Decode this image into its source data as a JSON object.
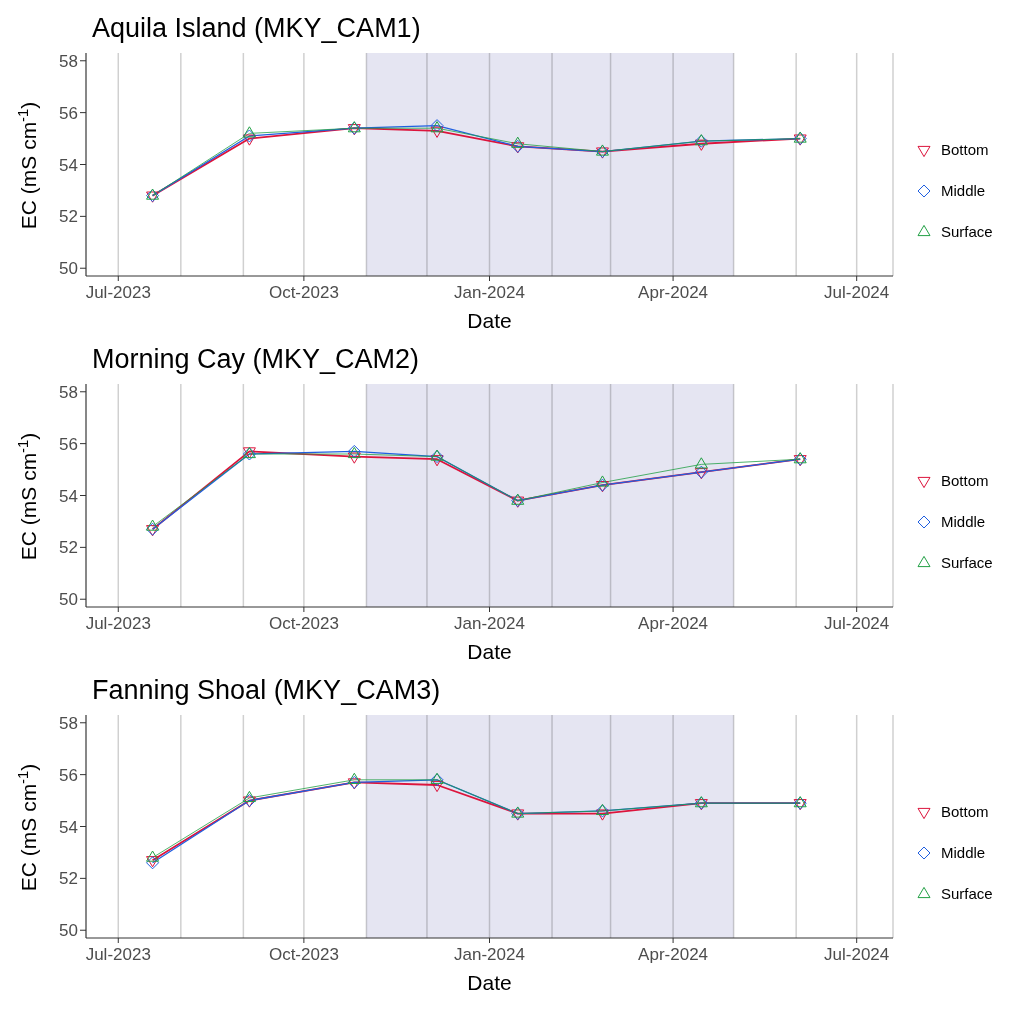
{
  "chart_data": [
    {
      "type": "line",
      "title": "Aquila Island (MKY_CAM1)",
      "xlabel": "Date",
      "ylabel": "EC (mS cm$^{-1}$)",
      "x": [
        "2023-07-18",
        "2023-09-04",
        "2023-10-26",
        "2023-12-06",
        "2024-01-15",
        "2024-02-26",
        "2024-04-15",
        "2024-06-03"
      ],
      "series": [
        {
          "name": "Bottom",
          "color": "#dc143c",
          "marker": "triangle-down",
          "values": [
            52.8,
            55.0,
            55.4,
            55.3,
            54.7,
            54.5,
            54.8,
            55.0
          ]
        },
        {
          "name": "Middle",
          "color": "#1f5fe0",
          "marker": "diamond",
          "values": [
            52.8,
            55.1,
            55.4,
            55.5,
            54.7,
            54.5,
            54.9,
            55.0
          ]
        },
        {
          "name": "Surface",
          "color": "#22a045",
          "marker": "triangle",
          "values": [
            52.8,
            55.2,
            55.4,
            55.4,
            54.8,
            54.5,
            54.9,
            55.0
          ]
        }
      ],
      "xlim": [
        "2023-06-15",
        "2024-07-19"
      ],
      "xticks": [
        {
          "value": "2023-07-01",
          "label": "Jul-2023"
        },
        {
          "value": "2023-08-01",
          "label": null
        },
        {
          "value": "2023-09-01",
          "label": null
        },
        {
          "value": "2023-10-01",
          "label": "Oct-2023"
        },
        {
          "value": "2023-11-01",
          "label": null
        },
        {
          "value": "2023-12-01",
          "label": null
        },
        {
          "value": "2024-01-01",
          "label": "Jan-2024"
        },
        {
          "value": "2024-02-01",
          "label": null
        },
        {
          "value": "2024-03-01",
          "label": null
        },
        {
          "value": "2024-04-01",
          "label": "Apr-2024"
        },
        {
          "value": "2024-05-01",
          "label": null
        },
        {
          "value": "2024-06-01",
          "label": null
        },
        {
          "value": "2024-07-01",
          "label": "Jul-2024"
        }
      ],
      "ylim": [
        49.7,
        58.3
      ],
      "yticks": [
        50,
        52,
        54,
        56,
        58
      ],
      "bands": [
        {
          "axis": "x",
          "from": "2023-11-01",
          "to": "2024-05-01",
          "color": "#e5e5f2"
        }
      ],
      "grid": "x",
      "legend": "right",
      "line_style": "solid"
    },
    {
      "type": "line",
      "title": "Morning Cay (MKY_CAM2)",
      "xlabel": "Date",
      "ylabel": "EC (mS cm$^{-1}$)",
      "x": [
        "2023-07-18",
        "2023-09-04",
        "2023-10-26",
        "2023-12-06",
        "2024-01-15",
        "2024-02-26",
        "2024-04-15",
        "2024-06-03"
      ],
      "series": [
        {
          "name": "Bottom",
          "color": "#dc143c",
          "marker": "triangle-down",
          "values": [
            52.7,
            55.7,
            55.5,
            55.4,
            53.8,
            54.4,
            54.9,
            55.4
          ]
        },
        {
          "name": "Middle",
          "color": "#1f5fe0",
          "marker": "diamond",
          "values": [
            52.7,
            55.6,
            55.7,
            55.5,
            53.8,
            54.4,
            54.9,
            55.4
          ]
        },
        {
          "name": "Surface",
          "color": "#22a045",
          "marker": "triangle",
          "values": [
            52.8,
            55.6,
            55.6,
            55.5,
            53.8,
            54.5,
            55.2,
            55.4
          ]
        }
      ],
      "xlim": [
        "2023-06-15",
        "2024-07-19"
      ],
      "xticks": [
        {
          "value": "2023-07-01",
          "label": "Jul-2023"
        },
        {
          "value": "2023-08-01",
          "label": null
        },
        {
          "value": "2023-09-01",
          "label": null
        },
        {
          "value": "2023-10-01",
          "label": "Oct-2023"
        },
        {
          "value": "2023-11-01",
          "label": null
        },
        {
          "value": "2023-12-01",
          "label": null
        },
        {
          "value": "2024-01-01",
          "label": "Jan-2024"
        },
        {
          "value": "2024-02-01",
          "label": null
        },
        {
          "value": "2024-03-01",
          "label": null
        },
        {
          "value": "2024-04-01",
          "label": "Apr-2024"
        },
        {
          "value": "2024-05-01",
          "label": null
        },
        {
          "value": "2024-06-01",
          "label": null
        },
        {
          "value": "2024-07-01",
          "label": "Jul-2024"
        }
      ],
      "ylim": [
        49.7,
        58.3
      ],
      "yticks": [
        50,
        52,
        54,
        56,
        58
      ],
      "bands": [
        {
          "axis": "x",
          "from": "2023-11-01",
          "to": "2024-05-01",
          "color": "#e5e5f2"
        }
      ],
      "grid": "x",
      "legend": "right",
      "line_style": "solid"
    },
    {
      "type": "line",
      "title": "Fanning Shoal (MKY_CAM3)",
      "xlabel": "Date",
      "ylabel": "EC (mS cm$^{-1}$)",
      "x": [
        "2023-07-18",
        "2023-09-04",
        "2023-10-26",
        "2023-12-06",
        "2024-01-15",
        "2024-02-26",
        "2024-04-15",
        "2024-06-03"
      ],
      "series": [
        {
          "name": "Bottom",
          "color": "#dc143c",
          "marker": "triangle-down",
          "values": [
            52.7,
            55.0,
            55.7,
            55.6,
            54.5,
            54.5,
            54.9,
            54.9
          ]
        },
        {
          "name": "Middle",
          "color": "#1f5fe0",
          "marker": "diamond",
          "values": [
            52.6,
            55.0,
            55.7,
            55.8,
            54.5,
            54.6,
            54.9,
            54.9
          ]
        },
        {
          "name": "Surface",
          "color": "#22a045",
          "marker": "triangle",
          "values": [
            52.8,
            55.1,
            55.8,
            55.8,
            54.5,
            54.6,
            54.9,
            54.9
          ]
        }
      ],
      "xlim": [
        "2023-06-15",
        "2024-07-19"
      ],
      "xticks": [
        {
          "value": "2023-07-01",
          "label": "Jul-2023"
        },
        {
          "value": "2023-08-01",
          "label": null
        },
        {
          "value": "2023-09-01",
          "label": null
        },
        {
          "value": "2023-10-01",
          "label": "Oct-2023"
        },
        {
          "value": "2023-11-01",
          "label": null
        },
        {
          "value": "2023-12-01",
          "label": null
        },
        {
          "value": "2024-01-01",
          "label": "Jan-2024"
        },
        {
          "value": "2024-02-01",
          "label": null
        },
        {
          "value": "2024-03-01",
          "label": null
        },
        {
          "value": "2024-04-01",
          "label": "Apr-2024"
        },
        {
          "value": "2024-05-01",
          "label": null
        },
        {
          "value": "2024-06-01",
          "label": null
        },
        {
          "value": "2024-07-01",
          "label": "Jul-2024"
        }
      ],
      "ylim": [
        49.7,
        58.3
      ],
      "yticks": [
        50,
        52,
        54,
        56,
        58
      ],
      "bands": [
        {
          "axis": "x",
          "from": "2023-11-01",
          "to": "2024-05-01",
          "color": "#e5e5f2"
        }
      ],
      "grid": "x",
      "legend": "right",
      "line_style": "solid"
    }
  ]
}
